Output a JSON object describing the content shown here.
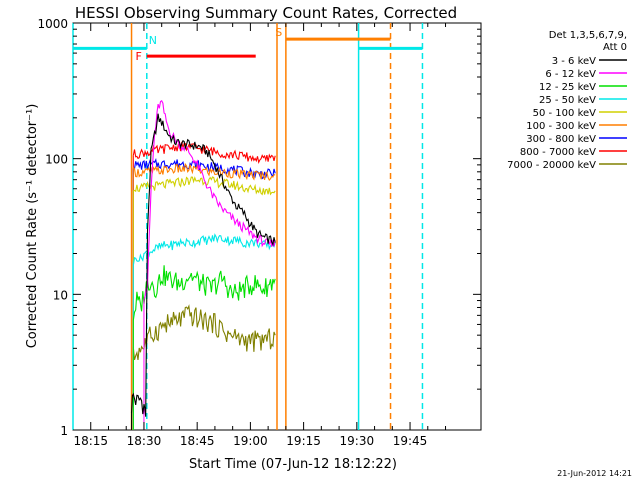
{
  "chart_data": {
    "type": "line",
    "title": "HESSI Observing Summary Count Rates, Corrected",
    "xlabel": "Start Time (07-Jun-12 18:12:22)",
    "ylabel": "Corrected Count Rate (s⁻¹ detector⁻¹)",
    "yscale": "log",
    "xlim_min": [
      10,
      125
    ],
    "ylim": [
      1,
      1000
    ],
    "x_ticks": [
      {
        "min": 15,
        "label": "18:15"
      },
      {
        "min": 30,
        "label": "18:30"
      },
      {
        "min": 45,
        "label": "18:45"
      },
      {
        "min": 60,
        "label": "19:00"
      },
      {
        "min": 75,
        "label": "19:15"
      },
      {
        "min": 90,
        "label": "19:30"
      },
      {
        "min": 105,
        "label": "19:45"
      }
    ],
    "y_ticks": [
      {
        "v": 1,
        "label": "1"
      },
      {
        "v": 10,
        "label": "10"
      },
      {
        "v": 100,
        "label": "100"
      },
      {
        "v": 1000,
        "label": "1000"
      }
    ],
    "legend_header": [
      "Det 1,3,5,6,7,9,",
      "Att 0"
    ],
    "legend_position": "right",
    "series": [
      {
        "name": "3 - 6 keV",
        "color": "#000000",
        "x_min": [
          26.5,
          27,
          28,
          29,
          30,
          30.5,
          31,
          32,
          33,
          34,
          35,
          36,
          37,
          38,
          39,
          40,
          42,
          44,
          46,
          48,
          50,
          52,
          54,
          56,
          58,
          60,
          62,
          64,
          66,
          67
        ],
        "values": [
          1.5,
          1.8,
          1.6,
          1.7,
          1.5,
          1.3,
          30,
          110,
          150,
          200,
          185,
          165,
          150,
          138,
          132,
          130,
          128,
          125,
          122,
          110,
          90,
          70,
          55,
          45,
          40,
          33,
          28,
          26,
          25,
          24
        ]
      },
      {
        "name": "6 - 12 keV",
        "color": "#ff00ff",
        "x_min": [
          30,
          31,
          32,
          33,
          34,
          35,
          36,
          37,
          38,
          39,
          40,
          42,
          44,
          46,
          48,
          50,
          52,
          54,
          56,
          58,
          60,
          62,
          64,
          66,
          67
        ],
        "values": [
          11,
          12,
          60,
          150,
          240,
          260,
          200,
          165,
          148,
          136,
          128,
          118,
          100,
          80,
          62,
          50,
          43,
          38,
          34,
          31,
          28,
          26,
          24,
          23,
          25
        ]
      },
      {
        "name": "12 - 25 keV",
        "color": "#00e000",
        "x_min": [
          27,
          28,
          29,
          30,
          31,
          32,
          33,
          34,
          35,
          37,
          40,
          43,
          46,
          49,
          52,
          55,
          58,
          61,
          64,
          67
        ],
        "values": [
          7,
          9,
          8,
          10,
          12,
          13,
          11,
          12,
          14,
          13,
          12,
          14,
          12,
          11,
          13,
          10,
          11,
          12,
          11,
          13
        ]
      },
      {
        "name": "25 - 50 keV",
        "color": "#00e8e8",
        "x_min": [
          27,
          28,
          29,
          30,
          31,
          32,
          34,
          36,
          38,
          40,
          42,
          44,
          46,
          48,
          50,
          52,
          54,
          56,
          58,
          60,
          62,
          64,
          66,
          67
        ],
        "values": [
          17,
          19,
          18,
          20,
          20,
          21,
          22,
          23,
          23,
          24,
          24,
          24,
          25,
          25,
          26,
          26,
          25,
          25,
          24,
          24,
          24,
          23,
          23,
          24
        ]
      },
      {
        "name": "50 - 100 keV",
        "color": "#d0d000",
        "x_min": [
          27,
          29,
          31,
          34,
          37,
          40,
          43,
          46,
          49,
          52,
          55,
          58,
          61,
          64,
          67
        ],
        "values": [
          62,
          60,
          62,
          63,
          65,
          67,
          69,
          70,
          68,
          66,
          64,
          61,
          59,
          58,
          58
        ]
      },
      {
        "name": "100 - 300 keV",
        "color": "#ff7f00",
        "x_min": [
          27,
          29,
          31,
          34,
          37,
          40,
          43,
          46,
          49,
          52,
          55,
          58,
          61,
          64,
          67
        ],
        "values": [
          80,
          79,
          80,
          81,
          83,
          84,
          84,
          82,
          80,
          79,
          78,
          76,
          76,
          75,
          76
        ]
      },
      {
        "name": "300 - 800 keV",
        "color": "#0000ff",
        "x_min": [
          27,
          29,
          31,
          34,
          37,
          40,
          43,
          46,
          49,
          52,
          55,
          58,
          61,
          64,
          67
        ],
        "values": [
          90,
          89,
          90,
          91,
          92,
          92,
          91,
          89,
          87,
          85,
          83,
          80,
          78,
          77,
          78
        ]
      },
      {
        "name": "800 - 7000 keV",
        "color": "#ff0000",
        "x_min": [
          27,
          29,
          31,
          34,
          37,
          40,
          43,
          46,
          49,
          52,
          55,
          58,
          61,
          64,
          67
        ],
        "values": [
          108,
          109,
          112,
          115,
          120,
          123,
          122,
          118,
          114,
          110,
          107,
          104,
          101,
          98,
          105
        ]
      },
      {
        "name": "7000 - 20000 keV",
        "color": "#808000",
        "x_min": [
          27,
          28,
          29,
          30,
          31,
          32,
          34,
          36,
          38,
          40,
          42,
          44,
          46,
          48,
          50,
          52,
          54,
          56,
          58,
          60,
          62,
          64,
          66,
          67
        ],
        "values": [
          3.5,
          3.7,
          4,
          4.2,
          4.5,
          5,
          5.5,
          6,
          6.2,
          6.5,
          7,
          6.8,
          6.5,
          6.3,
          6,
          5.5,
          5,
          4.8,
          4.6,
          4.5,
          4.5,
          4.6,
          4.7,
          5
        ]
      }
    ],
    "vlines": [
      {
        "min": 10,
        "color": "#00e8e8",
        "dash": false
      },
      {
        "min": 26.5,
        "color": "#ff7f00",
        "dash": false
      },
      {
        "min": 30.8,
        "color": "#00e8e8",
        "dash": true
      },
      {
        "min": 67.5,
        "color": "#ff7f00",
        "dash": false
      },
      {
        "min": 70,
        "color": "#ff7f00",
        "dash": false
      },
      {
        "min": 90.5,
        "color": "#00e8e8",
        "dash": false
      },
      {
        "min": 99.5,
        "color": "#ff7f00",
        "dash": true
      },
      {
        "min": 108.5,
        "color": "#00e8e8",
        "dash": true
      }
    ],
    "hbars": [
      {
        "x_min": [
          10,
          30.8
        ],
        "y": 650,
        "color": "#00e8e8"
      },
      {
        "x_min": [
          90.5,
          108.5
        ],
        "y": 650,
        "color": "#00e8e8"
      },
      {
        "x_min": [
          30.8,
          61.5
        ],
        "y": 570,
        "color": "#ff0000"
      },
      {
        "x_min": [
          70,
          99.5
        ],
        "y": 760,
        "color": "#ff7f00"
      }
    ],
    "flags": [
      {
        "label": "N",
        "x_min": 32.5,
        "y": 750,
        "color": "#00e8e8"
      },
      {
        "label": "F",
        "x_min": 28.5,
        "y": 570,
        "color": "#ff0000"
      },
      {
        "label": "S",
        "x_min": 68,
        "y": 860,
        "color": "#ff7f00"
      }
    ],
    "footer_date": "21-Jun-2012 14:21"
  }
}
